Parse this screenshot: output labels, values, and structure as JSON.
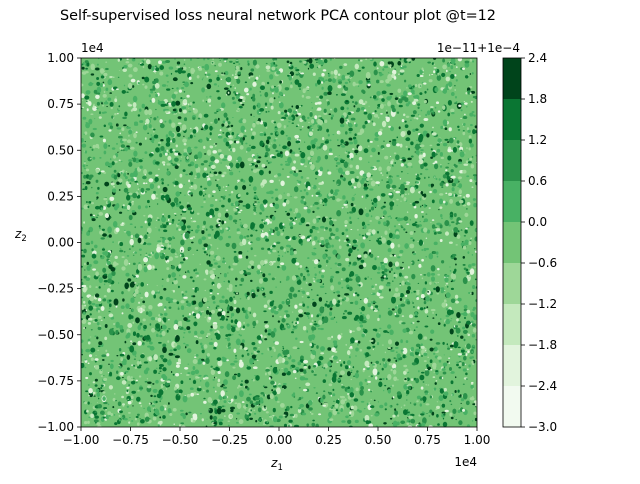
{
  "chart_data": {
    "type": "heatmap",
    "title": "Self-supervised loss neural network PCA contour plot @t=12",
    "xlabel_main": "z",
    "xlabel_sub": "1",
    "ylabel_main": "z",
    "ylabel_sub": "2",
    "x_ticks": [
      "−1.00",
      "−0.75",
      "−0.50",
      "−0.25",
      "0.00",
      "0.25",
      "0.50",
      "0.75",
      "1.00"
    ],
    "y_ticks": [
      "−1.00",
      "−0.75",
      "−0.50",
      "−0.25",
      "0.00",
      "0.25",
      "0.50",
      "0.75",
      "1.00"
    ],
    "x_tick_values": [
      -1.0,
      -0.75,
      -0.5,
      -0.25,
      0.0,
      0.25,
      0.5,
      0.75,
      1.0
    ],
    "y_tick_values": [
      -1.0,
      -0.75,
      -0.5,
      -0.25,
      0.0,
      0.25,
      0.5,
      0.75,
      1.0
    ],
    "xlim": [
      -1.0,
      1.0
    ],
    "ylim": [
      -1.0,
      1.0
    ],
    "x_offset_label": "1e4",
    "y_offset_label": "1e4",
    "colorbar": {
      "offset_label": "1e−11+1e−4",
      "ticks": [
        "2.4",
        "1.8",
        "1.2",
        "0.6",
        "0.0",
        "−0.6",
        "−1.2",
        "−1.8",
        "−2.4",
        "−3.0"
      ],
      "levels": [
        2.4,
        1.8,
        1.2,
        0.6,
        0.0,
        -0.6,
        -1.2,
        -1.8,
        -2.4,
        -3.0
      ],
      "colors": [
        "#00441b",
        "#0a7633",
        "#2a924a",
        "#48b164",
        "#73c476",
        "#9ed798",
        "#c4e9bd",
        "#e2f4dd",
        "#f2faf0"
      ],
      "cmap": "Greens"
    }
  }
}
